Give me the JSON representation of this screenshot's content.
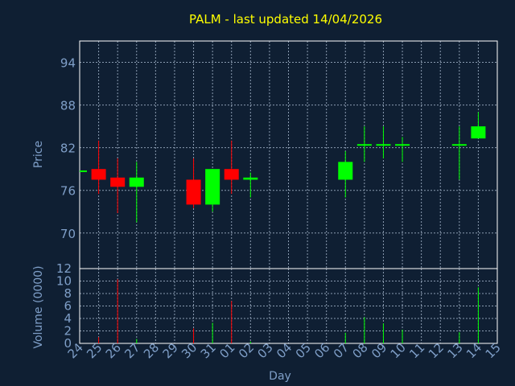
{
  "chart_data": {
    "type": "candlestick",
    "title": "PALM - last updated 14/04/2026",
    "xlabel": "Day",
    "ylabel": "Price",
    "volume_label": "Volume (0000)",
    "price_ticks": [
      "94",
      "88",
      "82",
      "76",
      "70"
    ],
    "price_tick_values": [
      94,
      88,
      82,
      76,
      70
    ],
    "price_ylim": [
      65,
      97
    ],
    "volume_ticks": [
      "12",
      "10",
      "8",
      "6",
      "4",
      "2",
      "0"
    ],
    "volume_tick_values": [
      12,
      10,
      8,
      6,
      4,
      2,
      0
    ],
    "volume_ylim": [
      0,
      12
    ],
    "grid": true,
    "categories": [
      "24",
      "25",
      "26",
      "27",
      "28",
      "29",
      "30",
      "31",
      "01",
      "02",
      "03",
      "04",
      "05",
      "06",
      "07",
      "08",
      "09",
      "10",
      "11",
      "12",
      "13",
      "14",
      "15"
    ],
    "candles": [
      {
        "day": "24",
        "open": 78.8,
        "high": 78.8,
        "low": 78.8,
        "close": 78.8,
        "volume": 0.0
      },
      {
        "day": "25",
        "open": 79.0,
        "high": 83.0,
        "low": 75.5,
        "close": 77.5,
        "volume": 1.0
      },
      {
        "day": "26",
        "open": 77.8,
        "high": 80.5,
        "low": 72.8,
        "close": 76.5,
        "volume": 10.3
      },
      {
        "day": "27",
        "open": 76.5,
        "high": 80.0,
        "low": 71.5,
        "close": 77.8,
        "volume": 0.7
      },
      {
        "day": "30",
        "open": 77.5,
        "high": 80.5,
        "low": 73.5,
        "close": 74.0,
        "volume": 2.4
      },
      {
        "day": "31",
        "open": 74.0,
        "high": 79.0,
        "low": 73.0,
        "close": 79.0,
        "volume": 3.3
      },
      {
        "day": "01",
        "open": 79.0,
        "high": 83.0,
        "low": 75.5,
        "close": 77.5,
        "volume": 6.8
      },
      {
        "day": "02",
        "open": 77.5,
        "high": 78.5,
        "low": 75.0,
        "close": 77.8,
        "volume": 0.3
      },
      {
        "day": "07",
        "open": 77.5,
        "high": 81.5,
        "low": 75.0,
        "close": 80.0,
        "volume": 1.7
      },
      {
        "day": "08",
        "open": 82.3,
        "high": 85.0,
        "low": 80.0,
        "close": 82.5,
        "volume": 4.2
      },
      {
        "day": "09",
        "open": 82.3,
        "high": 85.0,
        "low": 80.5,
        "close": 82.5,
        "volume": 3.2
      },
      {
        "day": "10",
        "open": 82.3,
        "high": 83.5,
        "low": 80.0,
        "close": 82.5,
        "volume": 2.2
      },
      {
        "day": "13",
        "open": 82.3,
        "high": 85.0,
        "low": 77.5,
        "close": 82.5,
        "volume": 1.8
      },
      {
        "day": "14",
        "open": 83.3,
        "high": 87.0,
        "low": 83.3,
        "close": 85.0,
        "volume": 9.0
      }
    ],
    "colors": {
      "background": "#0f1f33",
      "plot_border": "#ffffff",
      "grid": "#8a9bb0",
      "title": "#ffff00",
      "axis_text": "#7f9fc8",
      "up": "#00ff00",
      "down": "#ff0000"
    }
  }
}
